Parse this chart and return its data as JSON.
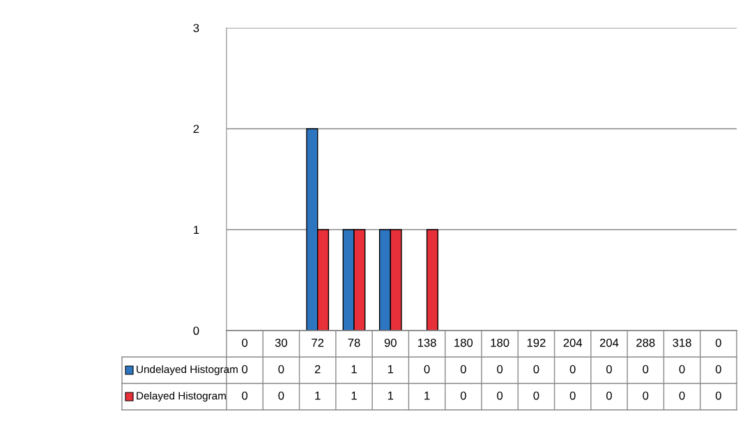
{
  "chart_data": {
    "type": "bar",
    "categories": [
      "0",
      "30",
      "72",
      "78",
      "90",
      "138",
      "180",
      "180",
      "192",
      "204",
      "204",
      "288",
      "318",
      "0"
    ],
    "series": [
      {
        "name": "Undelayed Histogram",
        "color": "#2e75c0",
        "values": [
          0,
          0,
          2,
          1,
          1,
          0,
          0,
          0,
          0,
          0,
          0,
          0,
          0,
          0
        ]
      },
      {
        "name": "Delayed Histogram",
        "color": "#e8303a",
        "values": [
          0,
          0,
          1,
          1,
          1,
          1,
          0,
          0,
          0,
          0,
          0,
          0,
          0,
          0
        ]
      }
    ],
    "ylim": [
      0,
      3
    ],
    "yticks": [
      0,
      1,
      2,
      3
    ],
    "grid": "y",
    "data_labels": true,
    "legend": "bottom left"
  }
}
